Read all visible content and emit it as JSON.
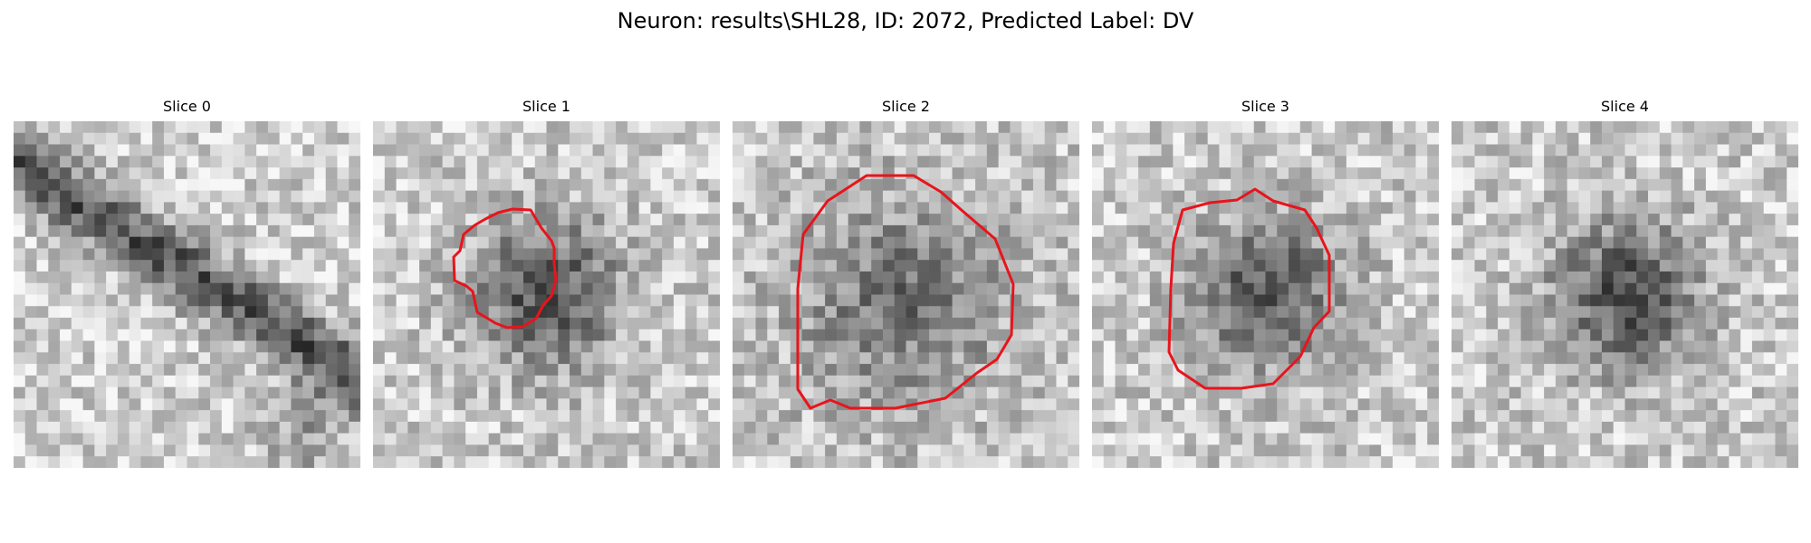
{
  "figure": {
    "title": "Neuron: results\\SHL28, ID: 2072, Predicted Label: DV"
  },
  "panels": [
    {
      "label": "Slice 0",
      "has_contour": false,
      "pattern": "diagonal-band"
    },
    {
      "label": "Slice 1",
      "has_contour": true,
      "pattern": "dark-blob"
    },
    {
      "label": "Slice 2",
      "has_contour": true,
      "pattern": "large-blob"
    },
    {
      "label": "Slice 3",
      "has_contour": true,
      "pattern": "dark-blob"
    },
    {
      "label": "Slice 4",
      "has_contour": false,
      "pattern": "dark-blob"
    }
  ],
  "colors": {
    "contour": "#e8141c",
    "background": "#ffffff"
  }
}
